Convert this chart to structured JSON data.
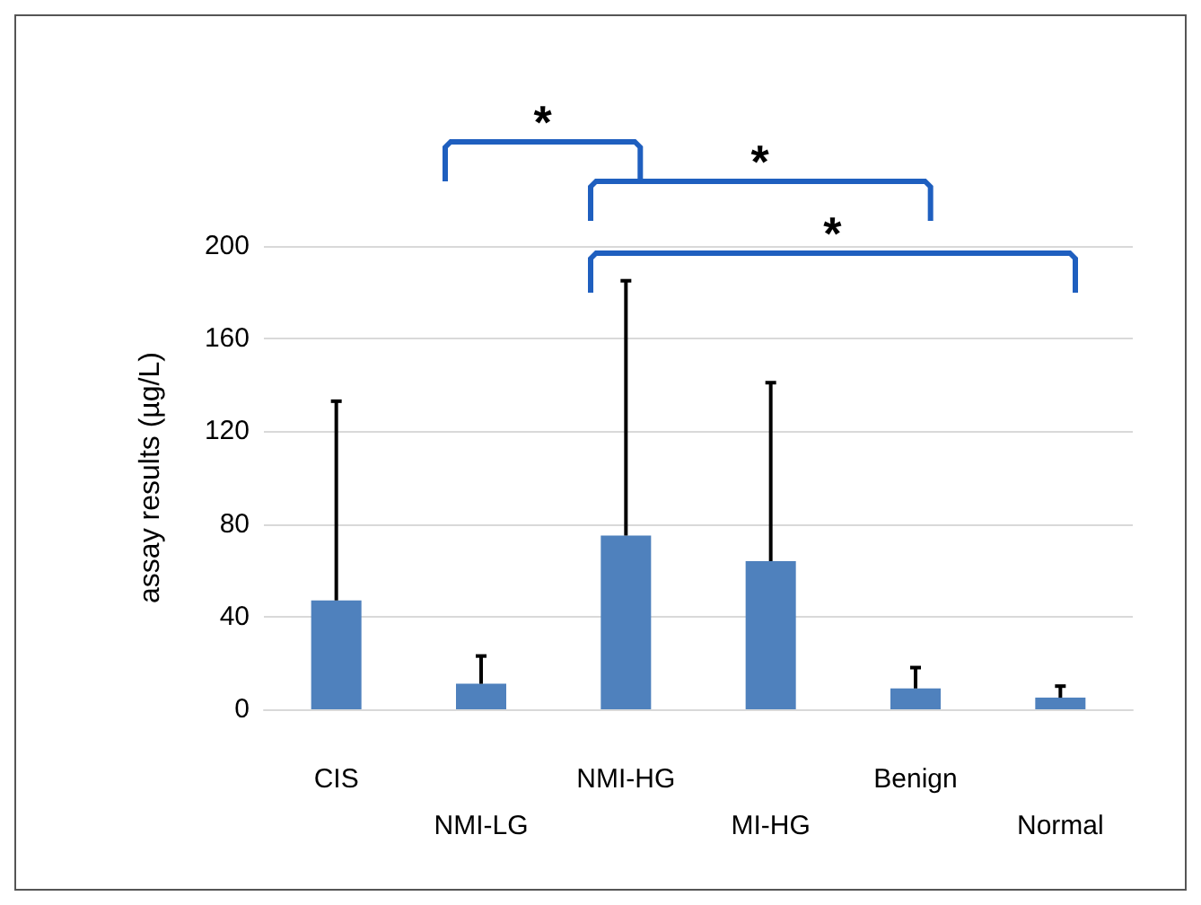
{
  "chart_data": {
    "type": "bar",
    "ylabel": "assay results (µg/L)",
    "categories": [
      "CIS",
      "NMI-LG",
      "NMI-HG",
      "MI-HG",
      "Benign",
      "Normal"
    ],
    "values": [
      47,
      11,
      75,
      64,
      9,
      5
    ],
    "errors": [
      [
        47,
        133
      ],
      [
        11,
        23
      ],
      [
        75,
        185
      ],
      [
        64,
        141
      ],
      [
        9,
        18
      ],
      [
        5,
        10
      ]
    ],
    "color": "#4f81bd",
    "ylim": [
      0,
      200
    ],
    "yticks": [
      0,
      40,
      80,
      120,
      160,
      200
    ],
    "grid": "y",
    "annotations": [
      "*",
      "*",
      "*"
    ]
  }
}
